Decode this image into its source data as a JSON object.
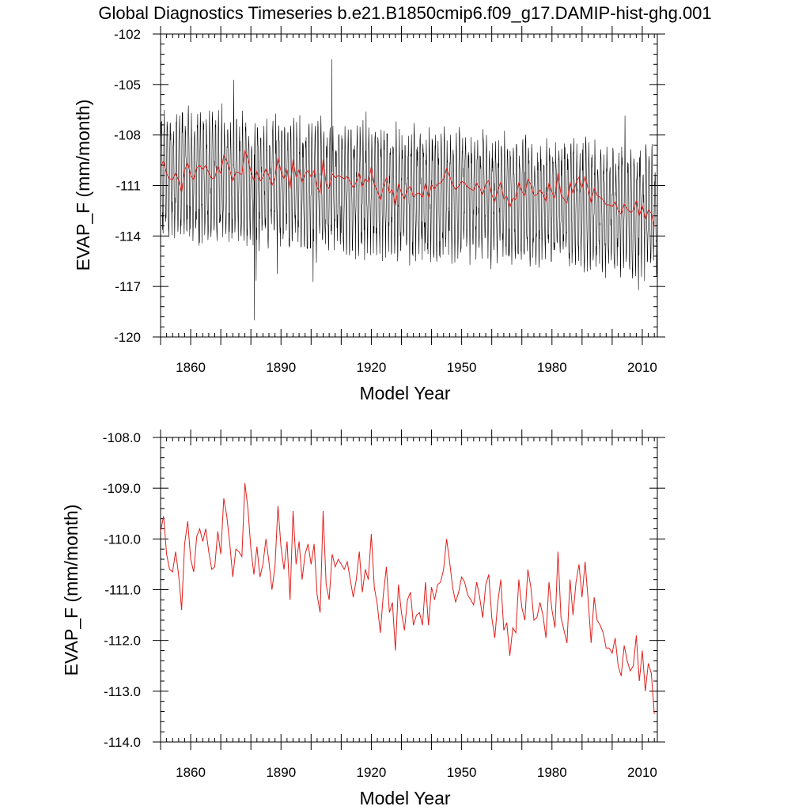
{
  "title": "Global Diagnostics Timeseries b.e21.B1850cmip6.f09_g17.DAMIP-hist-ghg.001",
  "colors": {
    "monthly": "#000000",
    "annual": "#e0201c"
  },
  "chart_data": [
    {
      "type": "line",
      "xlabel": "Model Year",
      "ylabel": "EVAP_F (mm/month)",
      "xlim": [
        1850,
        2015
      ],
      "ylim": [
        -120,
        -102
      ],
      "xticks": [
        1860,
        1890,
        1920,
        1950,
        1980,
        2010
      ],
      "yticks": [
        -120,
        -117,
        -114,
        -111,
        -108,
        -105,
        -102
      ],
      "ytick_labels": [
        "-120",
        "-117",
        "-114",
        "-111",
        "-108",
        "-105",
        "-102"
      ],
      "monthly_series": {
        "name": "monthly",
        "x_start": 1850,
        "step_years": 0.08333,
        "mean_start": -110.3,
        "mean_end": -112.6,
        "half_range": 3.1,
        "extremes": {
          "max": -103.5,
          "min": -119.0
        }
      }
    },
    {
      "type": "line",
      "xlabel": "Model Year",
      "ylabel": "EVAP_F (mm/month)",
      "xlim": [
        1850,
        2015
      ],
      "ylim": [
        -114,
        -108
      ],
      "xticks": [
        1860,
        1890,
        1920,
        1950,
        1980,
        2010
      ],
      "yticks": [
        -114,
        -113,
        -112,
        -111,
        -110,
        -109,
        -108
      ],
      "ytick_labels": [
        "-114.0",
        "-113.0",
        "-112.0",
        "-111.0",
        "-110.0",
        "-109.0",
        "-108.0"
      ],
      "series": [
        {
          "x_start": 1850,
          "step_years": 1,
          "values": [
            -109.85,
            -109.55,
            -110.3,
            -110.6,
            -110.65,
            -110.25,
            -110.7,
            -111.4,
            -110.1,
            -109.65,
            -110.4,
            -110.65,
            -109.95,
            -109.8,
            -110.05,
            -109.8,
            -110.25,
            -110.6,
            -110.55,
            -109.85,
            -110.3,
            -109.2,
            -109.55,
            -110.1,
            -110.75,
            -110.2,
            -110.25,
            -110.35,
            -108.9,
            -109.4,
            -110.2,
            -110.7,
            -110.15,
            -110.75,
            -110.5,
            -110.0,
            -110.45,
            -111.0,
            -110.55,
            -109.35,
            -110.15,
            -110.6,
            -110.05,
            -111.2,
            -109.45,
            -110.5,
            -110.05,
            -110.8,
            -110.3,
            -110.1,
            -110.5,
            -110.1,
            -111.1,
            -111.45,
            -109.45,
            -110.9,
            -111.2,
            -110.3,
            -110.55,
            -110.4,
            -110.5,
            -110.6,
            -110.45,
            -110.8,
            -111.15,
            -110.8,
            -110.25,
            -111.05,
            -110.6,
            -110.8,
            -109.9,
            -110.95,
            -111.3,
            -111.85,
            -111.1,
            -110.55,
            -111.45,
            -111.25,
            -112.2,
            -110.9,
            -111.45,
            -111.8,
            -111.2,
            -111.05,
            -111.7,
            -111.5,
            -111.45,
            -111.7,
            -110.85,
            -111.7,
            -110.95,
            -111.2,
            -110.9,
            -110.85,
            -110.6,
            -110.0,
            -110.45,
            -110.95,
            -111.25,
            -111.05,
            -110.75,
            -110.85,
            -111.1,
            -111.2,
            -111.3,
            -110.85,
            -111.15,
            -111.55,
            -110.9,
            -110.7,
            -111.55,
            -111.95,
            -111.25,
            -110.8,
            -111.8,
            -111.65,
            -112.3,
            -111.75,
            -111.85,
            -110.8,
            -111.35,
            -111.6,
            -110.6,
            -110.95,
            -111.6,
            -111.55,
            -111.25,
            -111.5,
            -111.95,
            -110.85,
            -111.4,
            -111.75,
            -110.25,
            -111.55,
            -111.8,
            -112.05,
            -110.8,
            -111.5,
            -110.85,
            -110.5,
            -111.15,
            -110.45,
            -111.2,
            -112.05,
            -111.15,
            -111.6,
            -111.7,
            -111.85,
            -112.15,
            -112.15,
            -112.25,
            -111.95,
            -112.5,
            -112.7,
            -112.1,
            -112.4,
            -112.6,
            -112.5,
            -111.9,
            -112.8,
            -112.2,
            -113.0,
            -112.45,
            -112.65,
            -113.45
          ]
        }
      ]
    }
  ]
}
